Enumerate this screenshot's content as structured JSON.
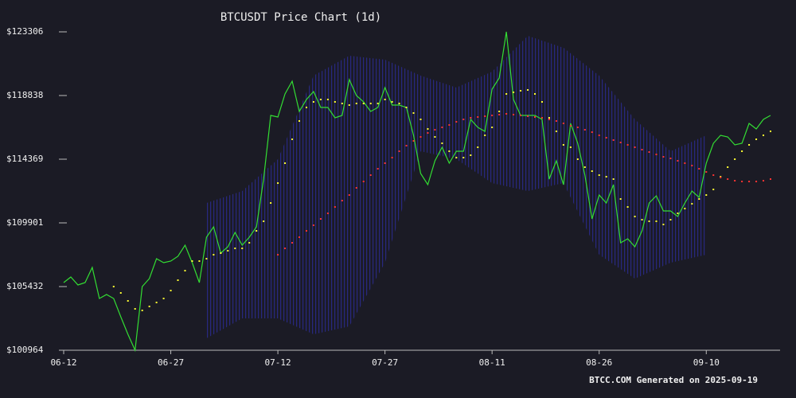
{
  "chart_data": {
    "type": "line",
    "title": "BTCUSDT Price Chart (1d)",
    "footer": "BTCC.COM Generated on 2025-09-19",
    "x": [
      "06-12",
      "06-13",
      "06-14",
      "06-15",
      "06-16",
      "06-17",
      "06-18",
      "06-19",
      "06-20",
      "06-21",
      "06-22",
      "06-23",
      "06-24",
      "06-25",
      "06-26",
      "06-27",
      "06-28",
      "06-29",
      "06-30",
      "07-01",
      "07-02",
      "07-03",
      "07-04",
      "07-05",
      "07-06",
      "07-07",
      "07-08",
      "07-09",
      "07-10",
      "07-11",
      "07-12",
      "07-13",
      "07-14",
      "07-15",
      "07-16",
      "07-17",
      "07-18",
      "07-19",
      "07-20",
      "07-21",
      "07-22",
      "07-23",
      "07-24",
      "07-25",
      "07-26",
      "07-27",
      "07-28",
      "07-29",
      "07-30",
      "07-31",
      "08-01",
      "08-02",
      "08-03",
      "08-04",
      "08-05",
      "08-06",
      "08-07",
      "08-08",
      "08-09",
      "08-10",
      "08-11",
      "08-12",
      "08-13",
      "08-14",
      "08-15",
      "08-16",
      "08-17",
      "08-18",
      "08-19",
      "08-20",
      "08-21",
      "08-22",
      "08-23",
      "08-24",
      "08-25",
      "08-26",
      "08-27",
      "08-28",
      "08-29",
      "08-30",
      "08-31",
      "09-01",
      "09-02",
      "09-03",
      "09-04",
      "09-05",
      "09-06",
      "09-07",
      "09-08",
      "09-09",
      "09-10",
      "09-11",
      "09-12",
      "09-13",
      "09-14",
      "09-15",
      "09-16",
      "09-17",
      "09-18",
      "09-19"
    ],
    "series": [
      {
        "color": "#33dd33",
        "style": "line",
        "values": [
          105712,
          106103,
          105544,
          105712,
          106773,
          104595,
          104874,
          104595,
          103310,
          102081,
          100964,
          105432,
          105991,
          107387,
          107108,
          107220,
          107555,
          108337,
          107108,
          105712,
          108895,
          109622,
          107778,
          108225,
          109231,
          108337,
          108895,
          109622,
          112973,
          117441,
          117330,
          118949,
          119843,
          117720,
          118558,
          119117,
          118000,
          118000,
          117274,
          117441,
          119955,
          118838,
          118391,
          117720,
          118000,
          119396,
          118167,
          118167,
          118000,
          116045,
          113364,
          112582,
          114257,
          115207,
          114090,
          114928,
          114928,
          117162,
          116603,
          116324,
          119284,
          120066,
          123306,
          118558,
          117441,
          117441,
          117441,
          117162,
          112973,
          114257,
          112582,
          116883,
          115486,
          113252,
          110180,
          111856,
          111297,
          112582,
          108504,
          108784,
          108225,
          109342,
          111297,
          111800,
          110739,
          110739,
          110348,
          111297,
          112135,
          111688,
          114090,
          115486,
          116045,
          115933,
          115375,
          115486,
          116883,
          116492,
          117162,
          117441
        ]
      },
      {
        "color": "#ffff33",
        "style": "dots",
        "values": [
          null,
          null,
          null,
          null,
          null,
          null,
          null,
          105432,
          104986,
          104427,
          103868,
          103757,
          104036,
          104315,
          104595,
          105153,
          105879,
          106549,
          107220,
          107220,
          107387,
          107667,
          107778,
          107946,
          108113,
          108113,
          108504,
          109342,
          110013,
          111297,
          112694,
          114090,
          115766,
          117050,
          118000,
          118391,
          118558,
          118558,
          118391,
          118279,
          118167,
          118279,
          118279,
          118279,
          118279,
          118558,
          118391,
          118279,
          118000,
          117609,
          117162,
          116492,
          115933,
          115486,
          114928,
          114481,
          114481,
          114648,
          115207,
          116045,
          116603,
          117720,
          118949,
          119061,
          119173,
          119229,
          118949,
          118391,
          117274,
          116324,
          115375,
          115207,
          114369,
          113811,
          113531,
          113252,
          113140,
          112973,
          111576,
          111018,
          110348,
          110124,
          110013,
          110013,
          109789,
          110124,
          110571,
          110906,
          111241,
          111576,
          111856,
          112247,
          113140,
          113811,
          114369,
          114928,
          115375,
          115766,
          116045,
          116324
        ]
      },
      {
        "color": "#ff3333",
        "style": "dots",
        "values": [
          null,
          null,
          null,
          null,
          null,
          null,
          null,
          null,
          null,
          null,
          null,
          null,
          null,
          null,
          null,
          null,
          null,
          null,
          null,
          null,
          null,
          null,
          null,
          null,
          null,
          null,
          null,
          null,
          null,
          null,
          107667,
          108113,
          108504,
          108895,
          109342,
          109733,
          110180,
          110571,
          111018,
          111465,
          111856,
          112358,
          112805,
          113252,
          113699,
          114090,
          114481,
          114928,
          115319,
          115654,
          115933,
          116212,
          116436,
          116603,
          116771,
          116994,
          117162,
          117274,
          117330,
          117385,
          117441,
          117497,
          117553,
          117497,
          117441,
          117385,
          117330,
          117274,
          117162,
          117050,
          116883,
          116715,
          116603,
          116436,
          116268,
          116045,
          115877,
          115710,
          115542,
          115375,
          115207,
          115039,
          114872,
          114704,
          114537,
          114425,
          114257,
          114090,
          113922,
          113699,
          113476,
          113252,
          113085,
          112973,
          112861,
          112805,
          112805,
          112805,
          112861,
          112973
        ]
      }
    ],
    "band": {
      "color": "#26267a",
      "x": [
        "07-02",
        "07-07",
        "07-12",
        "07-17",
        "07-22",
        "07-27",
        "08-01",
        "08-06",
        "08-11",
        "08-16",
        "08-21",
        "08-26",
        "08-31",
        "09-05",
        "09-10"
      ],
      "upper": [
        111297,
        112135,
        114369,
        120234,
        121630,
        121351,
        120234,
        119396,
        120513,
        123027,
        122189,
        120234,
        117162,
        114928,
        116045
      ],
      "lower": [
        101802,
        103198,
        103198,
        102081,
        102640,
        107108,
        114928,
        114369,
        112694,
        112135,
        112694,
        107667,
        105991,
        107108,
        107667
      ]
    },
    "ylim": [
      100964,
      123306
    ],
    "yticks": [
      {
        "value": 100964,
        "label": "$100964"
      },
      {
        "value": 105432,
        "label": "$105432"
      },
      {
        "value": 109901,
        "label": "$109901"
      },
      {
        "value": 114369,
        "label": "$114369"
      },
      {
        "value": 118838,
        "label": "$118838"
      },
      {
        "value": 123306,
        "label": "$123306"
      }
    ],
    "xticks": [
      "06-12",
      "06-27",
      "07-12",
      "07-27",
      "08-11",
      "08-26",
      "09-10"
    ]
  }
}
